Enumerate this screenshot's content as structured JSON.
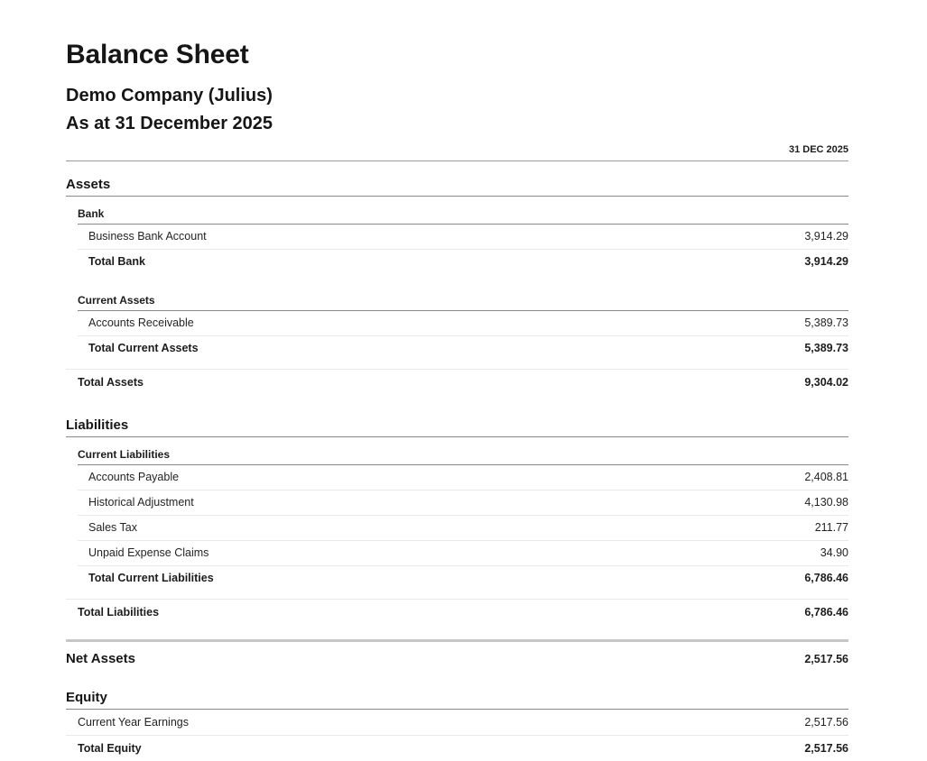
{
  "report": {
    "title": "Balance Sheet",
    "company": "Demo Company (Julius)",
    "as_at": "As at 31 December 2025",
    "column_header": "31 DEC 2025"
  },
  "colors": {
    "text": "#222222",
    "rule_dark": "#888888",
    "rule_light": "#e9e9e9",
    "rule_thick": "#c6c6c6"
  },
  "sections": [
    {
      "name": "Assets",
      "subsections": [
        {
          "name": "Bank",
          "rows": [
            {
              "label": "Business Bank Account",
              "value": "3,914.29"
            }
          ],
          "total": {
            "label": "Total Bank",
            "value": "3,914.29"
          }
        },
        {
          "name": "Current Assets",
          "rows": [
            {
              "label": "Accounts Receivable",
              "value": "5,389.73"
            }
          ],
          "total": {
            "label": "Total Current Assets",
            "value": "5,389.73"
          }
        }
      ],
      "total": {
        "label": "Total Assets",
        "value": "9,304.02"
      }
    },
    {
      "name": "Liabilities",
      "subsections": [
        {
          "name": "Current Liabilities",
          "rows": [
            {
              "label": "Accounts Payable",
              "value": "2,408.81"
            },
            {
              "label": "Historical Adjustment",
              "value": "4,130.98"
            },
            {
              "label": "Sales Tax",
              "value": "211.77"
            },
            {
              "label": "Unpaid Expense Claims",
              "value": "34.90"
            }
          ],
          "total": {
            "label": "Total Current Liabilities",
            "value": "6,786.46"
          }
        }
      ],
      "total": {
        "label": "Total Liabilities",
        "value": "6,786.46"
      }
    }
  ],
  "net_assets": {
    "label": "Net Assets",
    "value": "2,517.56"
  },
  "equity": {
    "name": "Equity",
    "rows": [
      {
        "label": "Current Year Earnings",
        "value": "2,517.56"
      }
    ],
    "total": {
      "label": "Total Equity",
      "value": "2,517.56"
    }
  }
}
